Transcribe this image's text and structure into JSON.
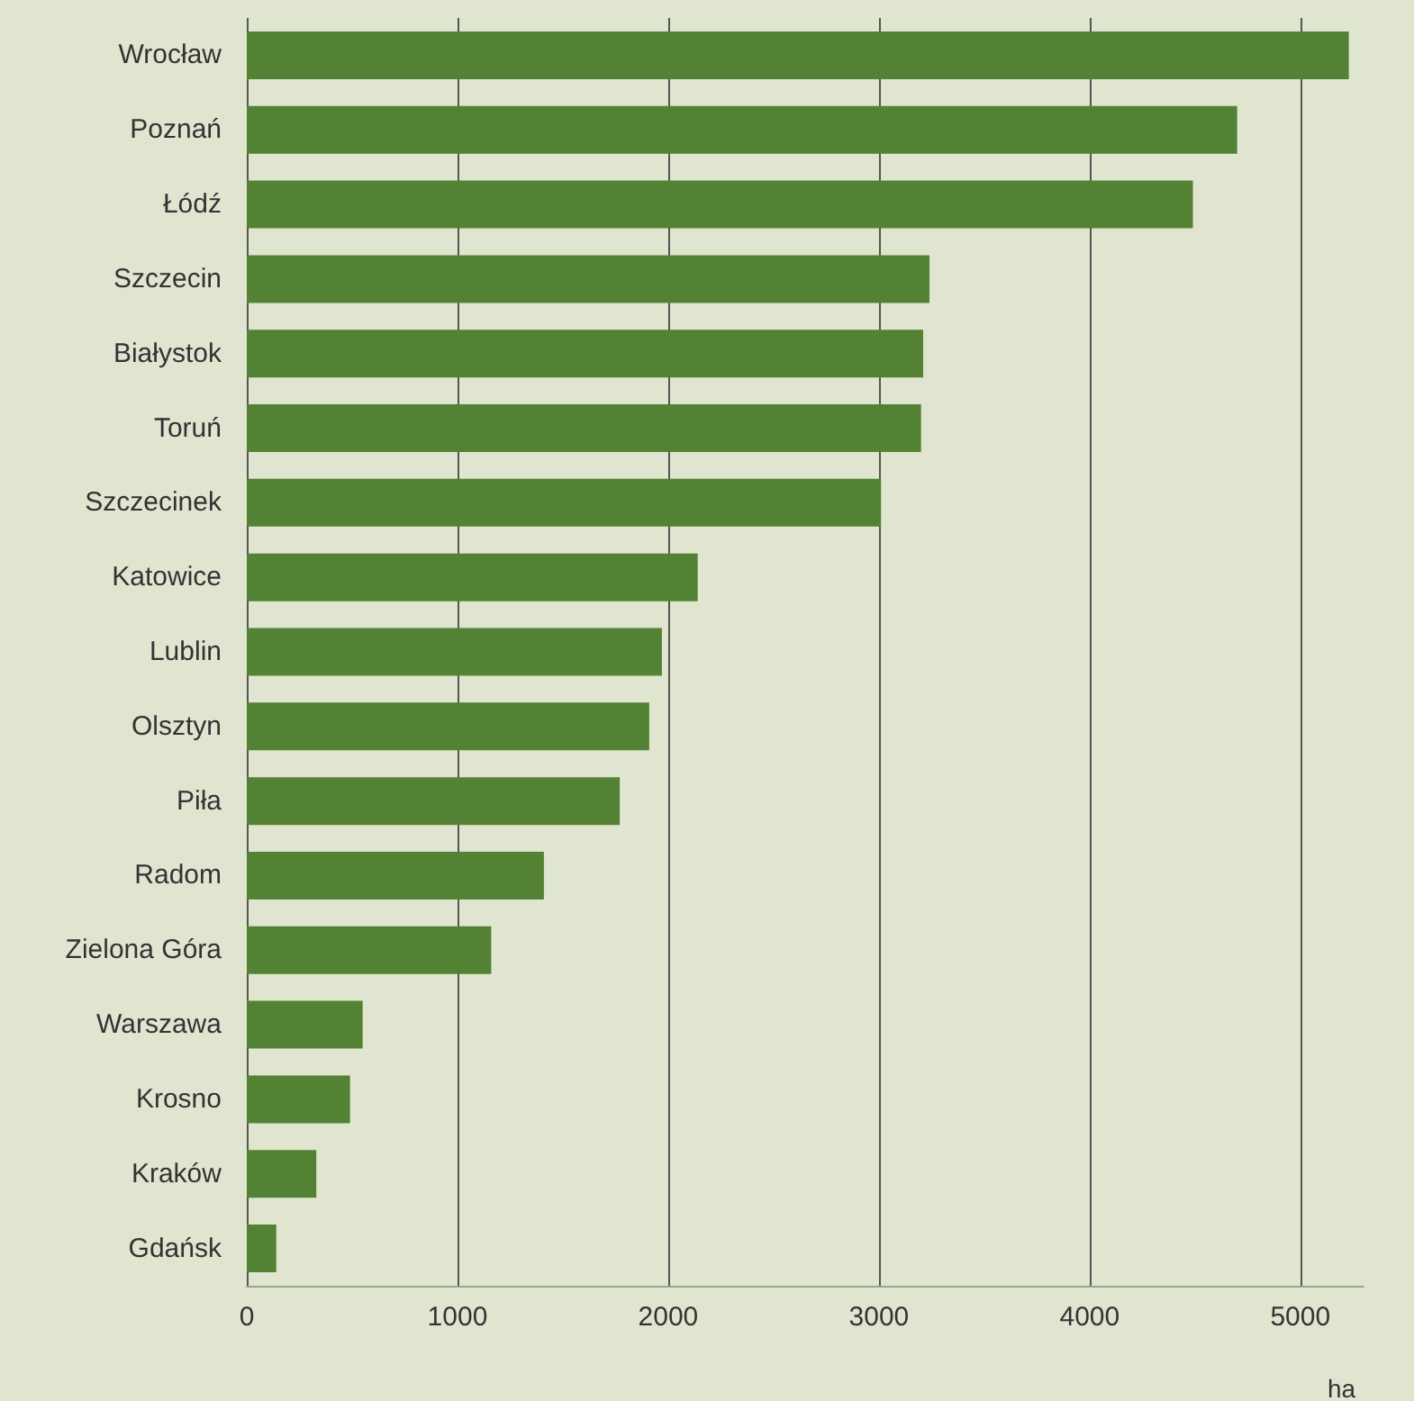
{
  "chart_data": {
    "type": "bar",
    "orientation": "horizontal",
    "xlabel": "ha",
    "categories": [
      "Wrocław",
      "Poznań",
      "Łódź",
      "Szczecin",
      "Białystok",
      "Toruń",
      "Szczecinek",
      "Katowice",
      "Lublin",
      "Olsztyn",
      "Piła",
      "Radom",
      "Zielona Góra",
      "Warszawa",
      "Krosno",
      "Kraków",
      "Gdańsk"
    ],
    "values": [
      5230,
      4700,
      4490,
      3240,
      3210,
      3200,
      3010,
      2140,
      1970,
      1910,
      1770,
      1410,
      1160,
      550,
      490,
      330,
      140
    ],
    "color": "#548235",
    "xlim": [
      0,
      5300
    ],
    "xticks": [
      0,
      1000,
      2000,
      3000,
      4000,
      5000
    ],
    "grid": "x"
  }
}
